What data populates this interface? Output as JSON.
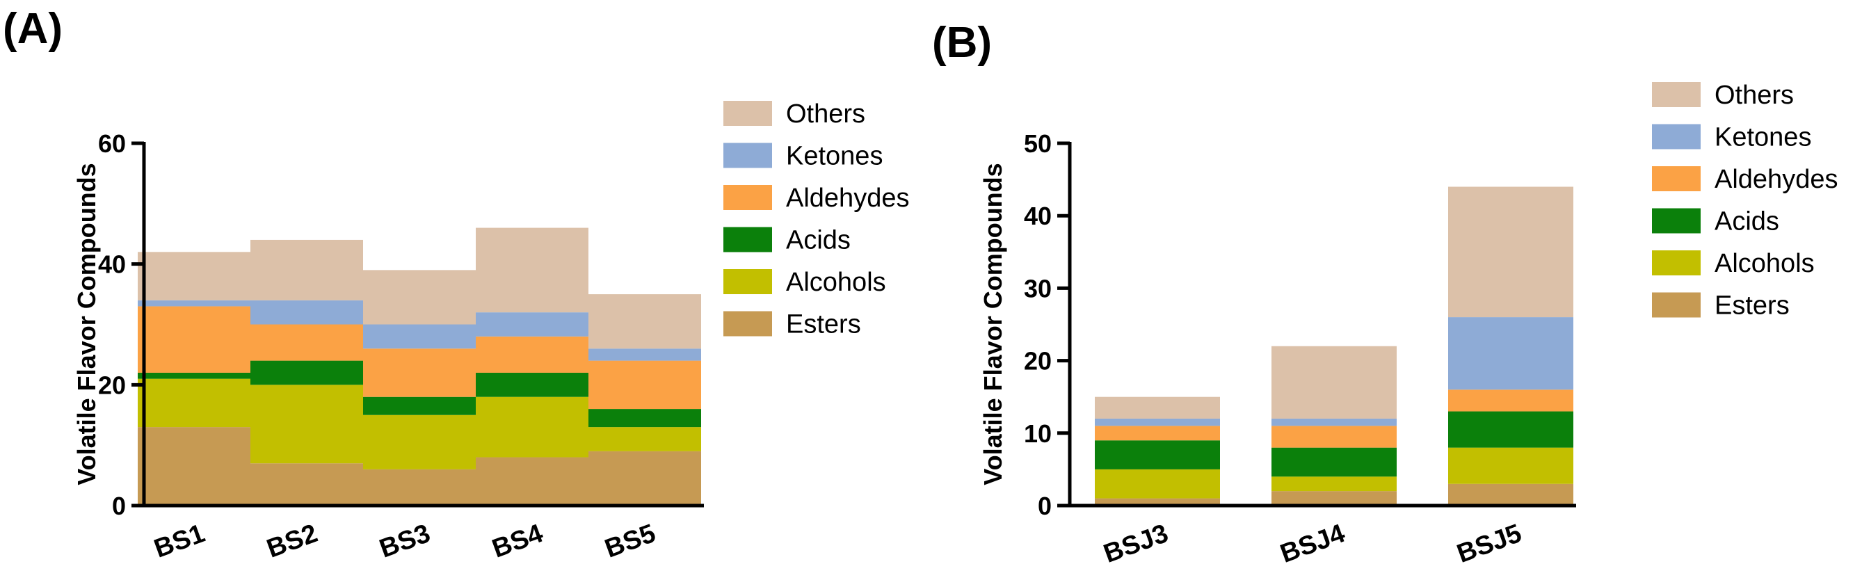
{
  "colors": {
    "Esters": "#c69a53",
    "Alcohols": "#c2bf00",
    "Acids": "#0b800b",
    "Aldehydes": "#fba245",
    "Ketones": "#8eabd6",
    "Others": "#dcc1a9"
  },
  "chart_data": [
    {
      "panel": "(A)",
      "type": "bar",
      "stacked": true,
      "ylabel": "Volatile Flavor Compounds",
      "ylim": [
        0,
        60
      ],
      "yticks": [
        0,
        20,
        40,
        60
      ],
      "categories": [
        "BS1",
        "BS2",
        "BS3",
        "BS4",
        "BS5"
      ],
      "series": [
        {
          "name": "Esters",
          "values": [
            13,
            7,
            6,
            8,
            9
          ]
        },
        {
          "name": "Alcohols",
          "values": [
            8,
            13,
            9,
            10,
            4
          ]
        },
        {
          "name": "Acids",
          "values": [
            1,
            4,
            3,
            4,
            3
          ]
        },
        {
          "name": "Aldehydes",
          "values": [
            11,
            6,
            8,
            6,
            8
          ]
        },
        {
          "name": "Ketones",
          "values": [
            1,
            4,
            4,
            4,
            2
          ]
        },
        {
          "name": "Others",
          "values": [
            8,
            10,
            9,
            14,
            9
          ]
        }
      ],
      "legend": [
        "Others",
        "Ketones",
        "Aldehydes",
        "Acids",
        "Alcohols",
        "Esters"
      ]
    },
    {
      "panel": "(B)",
      "type": "bar",
      "stacked": true,
      "ylabel": "Volatile Flavor Compounds",
      "ylim": [
        0,
        50
      ],
      "yticks": [
        0,
        10,
        20,
        30,
        40,
        50
      ],
      "categories": [
        "BSJ3",
        "BSJ4",
        "BSJ5"
      ],
      "series": [
        {
          "name": "Esters",
          "values": [
            1,
            2,
            3
          ]
        },
        {
          "name": "Alcohols",
          "values": [
            4,
            2,
            5
          ]
        },
        {
          "name": "Acids",
          "values": [
            4,
            4,
            5
          ]
        },
        {
          "name": "Aldehydes",
          "values": [
            2,
            3,
            3
          ]
        },
        {
          "name": "Ketones",
          "values": [
            1,
            1,
            10
          ]
        },
        {
          "name": "Others",
          "values": [
            3,
            10,
            18
          ]
        }
      ],
      "legend": [
        "Others",
        "Ketones",
        "Aldehydes",
        "Acids",
        "Alcohols",
        "Esters"
      ]
    }
  ]
}
